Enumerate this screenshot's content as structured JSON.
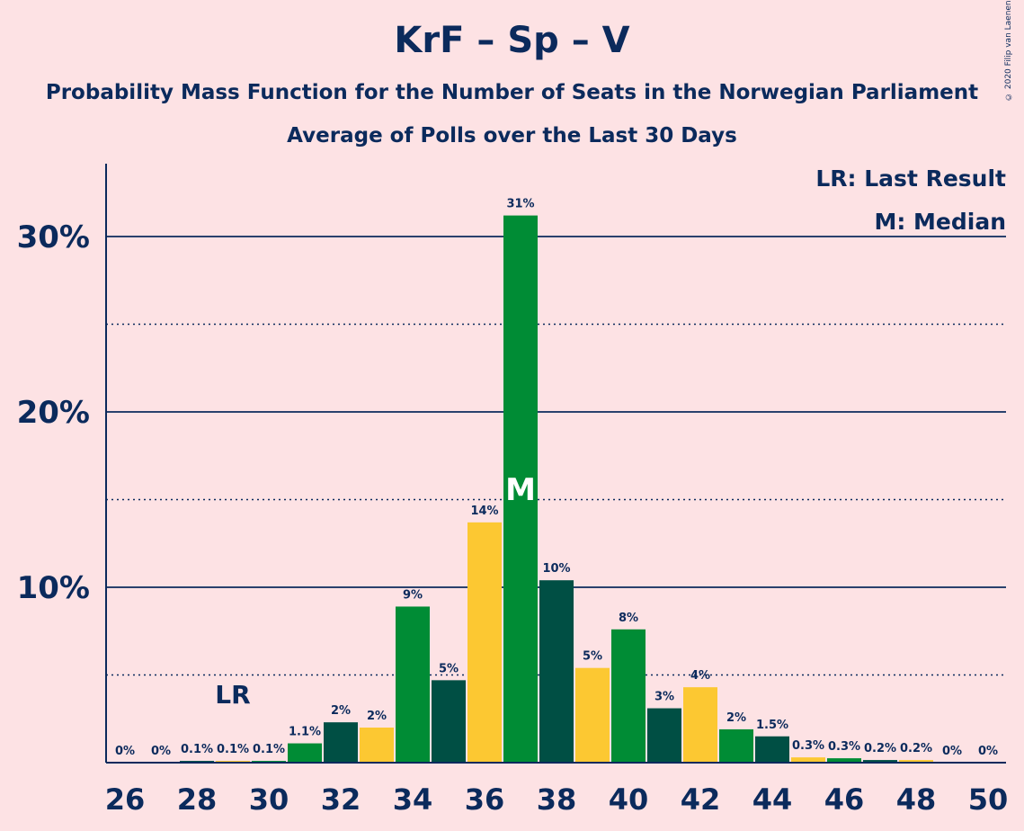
{
  "title": "KrF – Sp – V",
  "subtitle": "Probability Mass Function for the Number of Seats in the Norwegian Parliament",
  "subtitle2": "Average of Polls over the Last 30 Days",
  "copyright": "© 2020 Filip van Laenen",
  "legend": {
    "lr": "LR: Last Result",
    "m": "M: Median"
  },
  "markers": {
    "lr_label": "LR",
    "lr_seat": 29,
    "median_label": "M",
    "median_seat": 37
  },
  "colors": {
    "background": "#fde2e4",
    "text": "#0b2a5c",
    "green": "#008c35",
    "dark_green": "#004f44",
    "yellow": "#fcc832"
  },
  "chart_data": {
    "type": "bar",
    "x": [
      26,
      27,
      28,
      29,
      30,
      31,
      32,
      33,
      34,
      35,
      36,
      37,
      38,
      39,
      40,
      41,
      42,
      43,
      44,
      45,
      46,
      47,
      48,
      49,
      50
    ],
    "values": [
      0,
      0,
      0.1,
      0.1,
      0.1,
      1.1,
      2.3,
      2.0,
      8.9,
      4.7,
      13.7,
      31.2,
      10.4,
      5.4,
      7.6,
      3.1,
      4.3,
      1.9,
      1.5,
      0.3,
      0.25,
      0.15,
      0.15,
      0,
      0
    ],
    "data_labels": [
      "0%",
      "0%",
      "0.1%",
      "0.1%",
      "0.1%",
      "1.1%",
      "2%",
      "2%",
      "9%",
      "5%",
      "14%",
      "31%",
      "10%",
      "5%",
      "8%",
      "3%",
      "4%",
      "2%",
      "1.5%",
      "0.3%",
      "0.3%",
      "0.2%",
      "0.2%",
      "0%",
      "0%"
    ],
    "bar_colors": [
      "yellow",
      "green",
      "dark_green",
      "yellow",
      "green",
      "green",
      "dark_green",
      "yellow",
      "green",
      "dark_green",
      "yellow",
      "green",
      "dark_green",
      "yellow",
      "green",
      "dark_green",
      "yellow",
      "green",
      "dark_green",
      "yellow",
      "green",
      "dark_green",
      "yellow",
      "green",
      "dark_green"
    ],
    "x_ticks": [
      "26",
      "28",
      "30",
      "32",
      "34",
      "36",
      "38",
      "40",
      "42",
      "44",
      "46",
      "48",
      "50"
    ],
    "y_ticks": [
      {
        "value": 10,
        "label": "10%"
      },
      {
        "value": 20,
        "label": "20%"
      },
      {
        "value": 30,
        "label": "30%"
      }
    ],
    "ylim": [
      0,
      34
    ],
    "grid": "solid at 10% steps, dotted at 5% steps"
  }
}
